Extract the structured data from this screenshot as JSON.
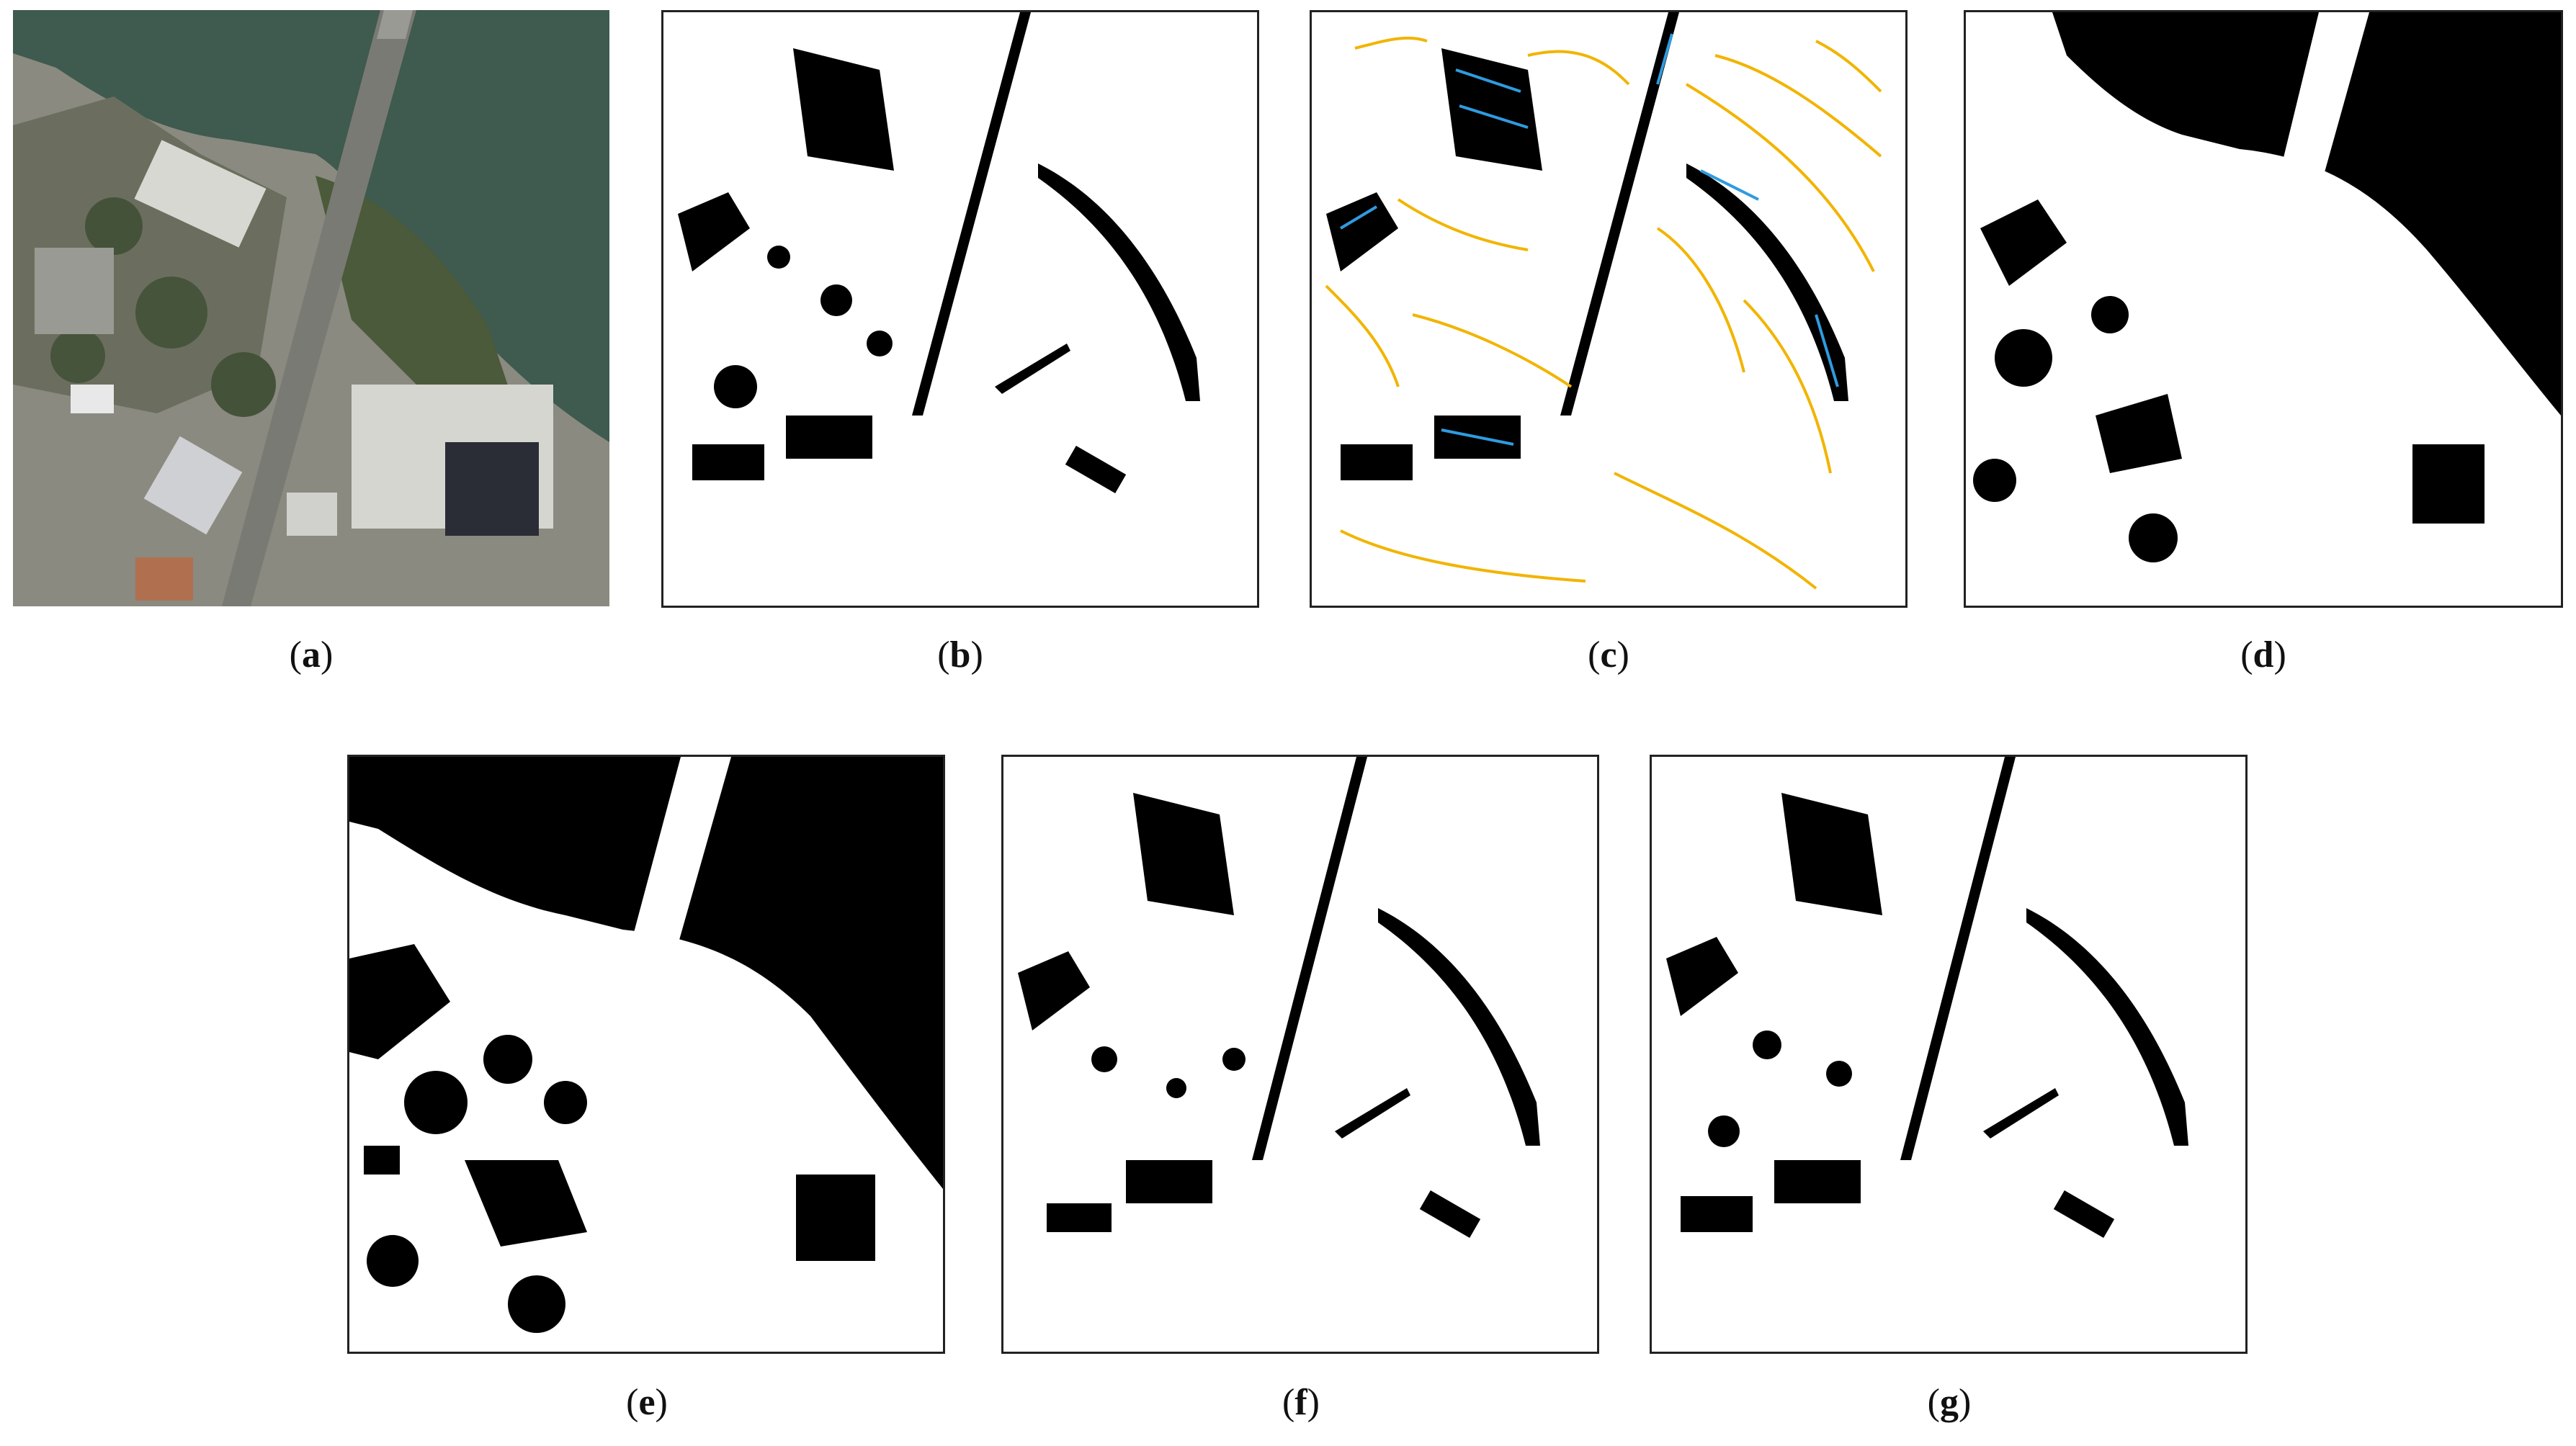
{
  "figure": {
    "panels": [
      {
        "id": "a",
        "label": "a",
        "kind": "aerial-photograph"
      },
      {
        "id": "b",
        "label": "b",
        "kind": "binary-shadow-mask"
      },
      {
        "id": "c",
        "label": "c",
        "kind": "mask-with-annotation-lines",
        "line_colors": [
          "#f2b400",
          "#2f9be0"
        ]
      },
      {
        "id": "d",
        "label": "d",
        "kind": "binary-shadow-mask"
      },
      {
        "id": "e",
        "label": "e",
        "kind": "binary-shadow-mask"
      },
      {
        "id": "f",
        "label": "f",
        "kind": "binary-shadow-mask"
      },
      {
        "id": "g",
        "label": "g",
        "kind": "binary-shadow-mask"
      }
    ],
    "colors": {
      "mask_fg": "#000000",
      "mask_bg": "#ffffff",
      "water": "#3f5a4e",
      "vegetation": "#4a5a3a",
      "urban": "#8a8a80"
    }
  }
}
